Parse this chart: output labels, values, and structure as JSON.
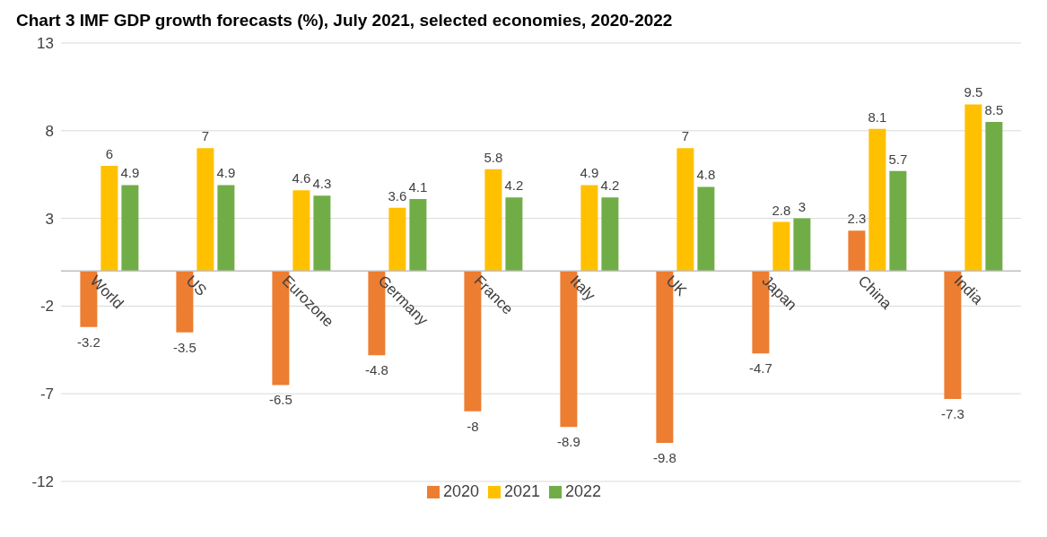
{
  "chart_data": {
    "type": "bar",
    "title": "Chart 3 IMF GDP growth forecasts (%), July 2021, selected economies, 2020-2022",
    "categories": [
      "World",
      "US",
      "Eurozone",
      "Germany",
      "France",
      "Italy",
      "UK",
      "Japan",
      "China",
      "India"
    ],
    "series": [
      {
        "name": "2020",
        "color": "#ed7d31",
        "values": [
          -3.2,
          -3.5,
          -6.5,
          -4.8,
          -8,
          -8.9,
          -9.8,
          -4.7,
          2.3,
          -7.3
        ]
      },
      {
        "name": "2021",
        "color": "#ffc000",
        "values": [
          6,
          7,
          4.6,
          3.6,
          5.8,
          4.9,
          7,
          2.8,
          8.1,
          9.5
        ]
      },
      {
        "name": "2022",
        "color": "#70ad47",
        "values": [
          4.9,
          4.9,
          4.3,
          4.1,
          4.2,
          4.2,
          4.8,
          3,
          5.7,
          8.5
        ]
      }
    ],
    "ylim": [
      -12,
      13
    ],
    "yticks": [
      -12,
      -7,
      -2,
      3,
      8,
      13
    ],
    "grid": "y",
    "legend": "bottom",
    "data_labels": true
  }
}
